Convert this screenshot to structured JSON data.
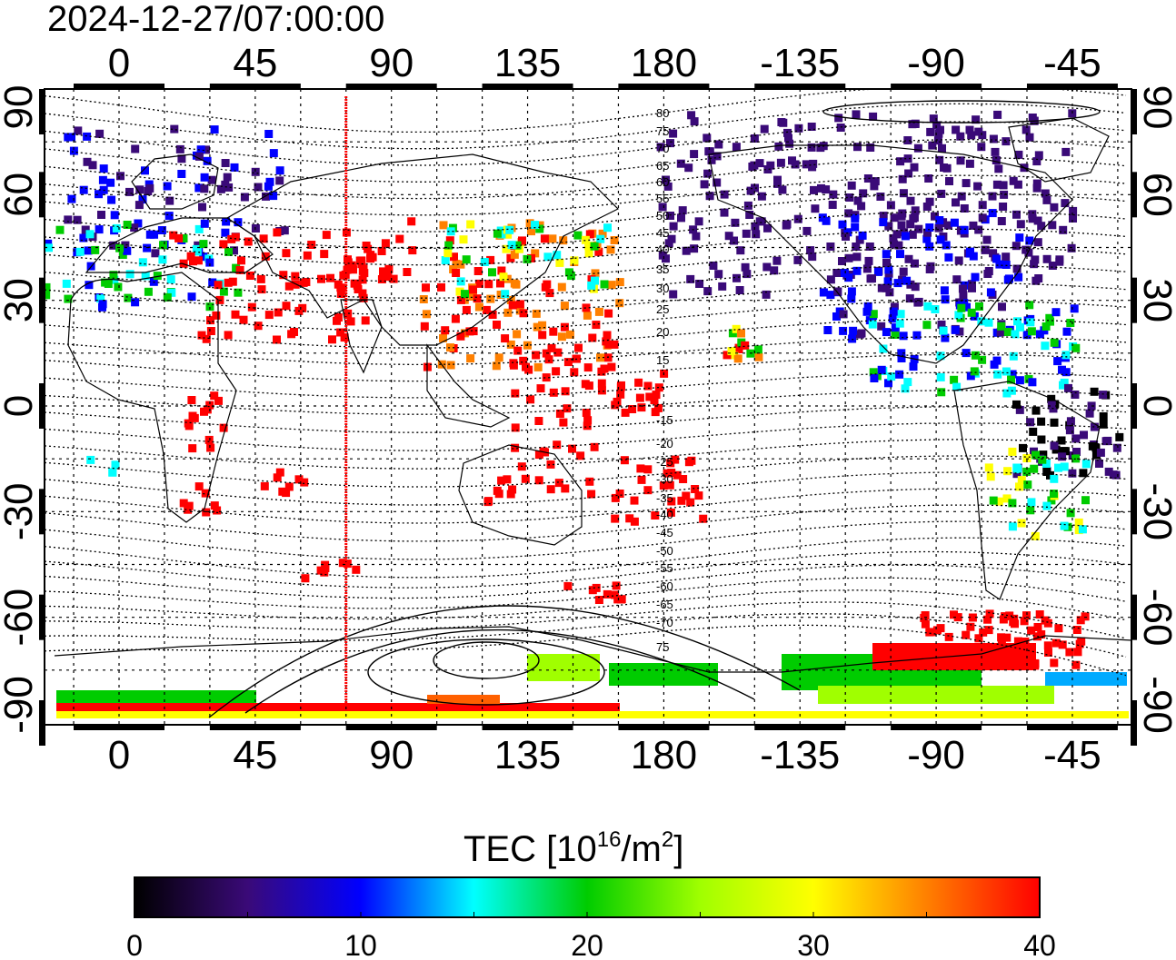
{
  "map": {
    "timestamp": "2024-12-27/07:00:00",
    "top_lon_labels": [
      "0",
      "45",
      "90",
      "135",
      "180",
      "-135",
      "-90",
      "-45"
    ],
    "bottom_lon_labels": [
      "0",
      "45",
      "90",
      "135",
      "180",
      "-135",
      "-90",
      "-45"
    ],
    "left_lat_labels": [
      "90",
      "60",
      "30",
      "0",
      "-30",
      "-60",
      "-90"
    ],
    "right_lat_labels": [
      "90",
      "60",
      "30",
      "0",
      "-30",
      "-60",
      "-90"
    ],
    "lon_ticks": [
      0,
      45,
      90,
      135,
      180,
      -135,
      -90,
      -45
    ],
    "lat_ticks": [
      90,
      60,
      30,
      0,
      -30,
      -60,
      -90
    ],
    "center_longitude": 150,
    "marker_longitude": 75,
    "marker_color": "#ff0000",
    "contour_labels_north": [
      "80",
      "75",
      "70",
      "65",
      "60",
      "55",
      "50",
      "45",
      "40",
      "35",
      "30",
      "25",
      "20",
      "15"
    ],
    "contour_labels_south": [
      "-15",
      "-20",
      "-25",
      "-30",
      "-35",
      "-40",
      "-45",
      "-50",
      "-55",
      "-60",
      "-65",
      "-70",
      "75"
    ]
  },
  "colorbar": {
    "title_prefix": "TEC  [10",
    "title_exp1": "16",
    "title_mid": "/m",
    "title_exp2": "2",
    "title_suffix": "]",
    "tick_labels": [
      "0",
      "10",
      "20",
      "30",
      "40"
    ],
    "min": 0,
    "max": 40,
    "colors": [
      "#000000",
      "#3a0a78",
      "#0000ff",
      "#00ffff",
      "#00cc00",
      "#ffff00",
      "#ff8000",
      "#ff0000"
    ]
  }
}
